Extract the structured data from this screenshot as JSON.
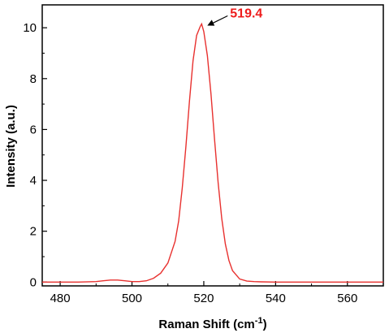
{
  "chart_data": {
    "type": "line",
    "xlabel": "Raman Shift (cm",
    "xlabel_sup": "-1",
    "xlabel_close": ")",
    "ylabel": "Intensity (a.u.)",
    "xlim": [
      475,
      570
    ],
    "ylim": [
      -0.15,
      10.9
    ],
    "xticks": [
      480,
      500,
      520,
      540,
      560
    ],
    "yticks": [
      0,
      2,
      4,
      6,
      8,
      10
    ],
    "line_color": "#e8312f",
    "annotation": {
      "text": "519.4",
      "x": 519.4,
      "y": 10.15,
      "color": "#ee1c1c"
    },
    "series": [
      {
        "x": [
          475,
          480,
          485,
          490,
          492,
          494,
          496,
          498,
          500,
          502,
          504,
          506,
          508,
          510,
          512,
          513,
          514,
          515,
          516,
          517,
          518,
          519,
          519.4,
          520,
          521,
          522,
          523,
          524,
          525,
          526,
          527,
          528,
          530,
          532,
          534,
          536,
          540,
          550,
          560,
          570
        ],
        "y": [
          0.0,
          0.0,
          0.0,
          0.02,
          0.05,
          0.08,
          0.08,
          0.05,
          0.02,
          0.02,
          0.05,
          0.15,
          0.35,
          0.75,
          1.6,
          2.4,
          3.7,
          5.3,
          7.1,
          8.7,
          9.7,
          10.05,
          10.15,
          9.85,
          8.9,
          7.4,
          5.6,
          3.9,
          2.5,
          1.5,
          0.85,
          0.45,
          0.12,
          0.04,
          0.02,
          0.01,
          0.0,
          0.0,
          0.0,
          0.0
        ]
      }
    ]
  }
}
